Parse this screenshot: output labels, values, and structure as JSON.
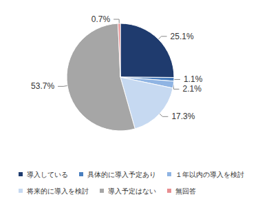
{
  "chart_data": {
    "type": "pie",
    "categories": [
      "導入している",
      "具体的に導入予定あり",
      "１年以内の導入を検討",
      "将来的に導入を検討",
      "導入予定はない",
      "無回答"
    ],
    "values": [
      25.1,
      1.1,
      2.1,
      17.3,
      53.7,
      0.7
    ],
    "value_labels": [
      "25.1%",
      "1.1%",
      "2.1%",
      "17.3%",
      "53.7%",
      "0.7%"
    ],
    "colors": [
      "#1f3b6e",
      "#4a7fbf",
      "#8fb4e3",
      "#c6d9f1",
      "#a6a6a6",
      "#e88e91"
    ],
    "data_labels": true,
    "legend": "bottom"
  }
}
